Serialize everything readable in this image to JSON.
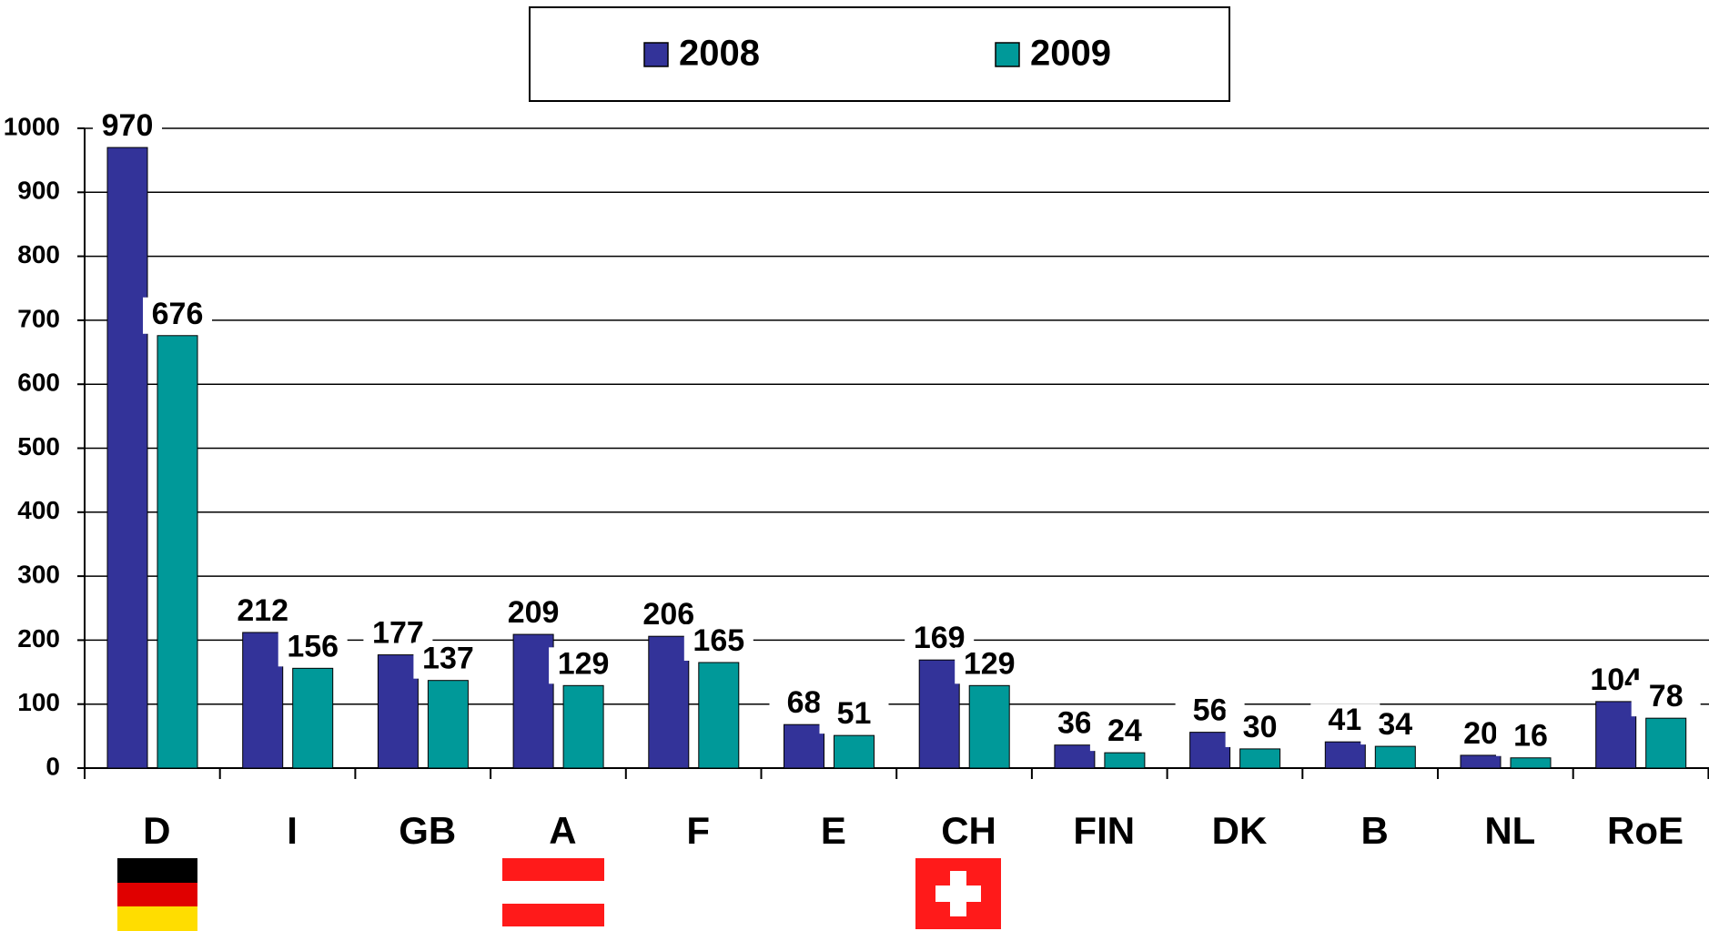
{
  "chart_data": {
    "type": "bar",
    "categories": [
      "D",
      "I",
      "GB",
      "A",
      "F",
      "E",
      "CH",
      "FIN",
      "DK",
      "B",
      "NL",
      "RoE"
    ],
    "series": [
      {
        "name": "2008",
        "color": "#333399",
        "values": [
          970,
          212,
          177,
          209,
          206,
          68,
          169,
          36,
          56,
          41,
          20,
          104
        ]
      },
      {
        "name": "2009",
        "color": "#009999",
        "values": [
          676,
          156,
          137,
          129,
          165,
          51,
          129,
          24,
          30,
          34,
          16,
          78
        ]
      }
    ],
    "ylim": [
      0,
      1000
    ],
    "yticks": [
      0,
      100,
      200,
      300,
      400,
      500,
      600,
      700,
      800,
      900,
      1000
    ],
    "grid": true,
    "legend": "top"
  }
}
